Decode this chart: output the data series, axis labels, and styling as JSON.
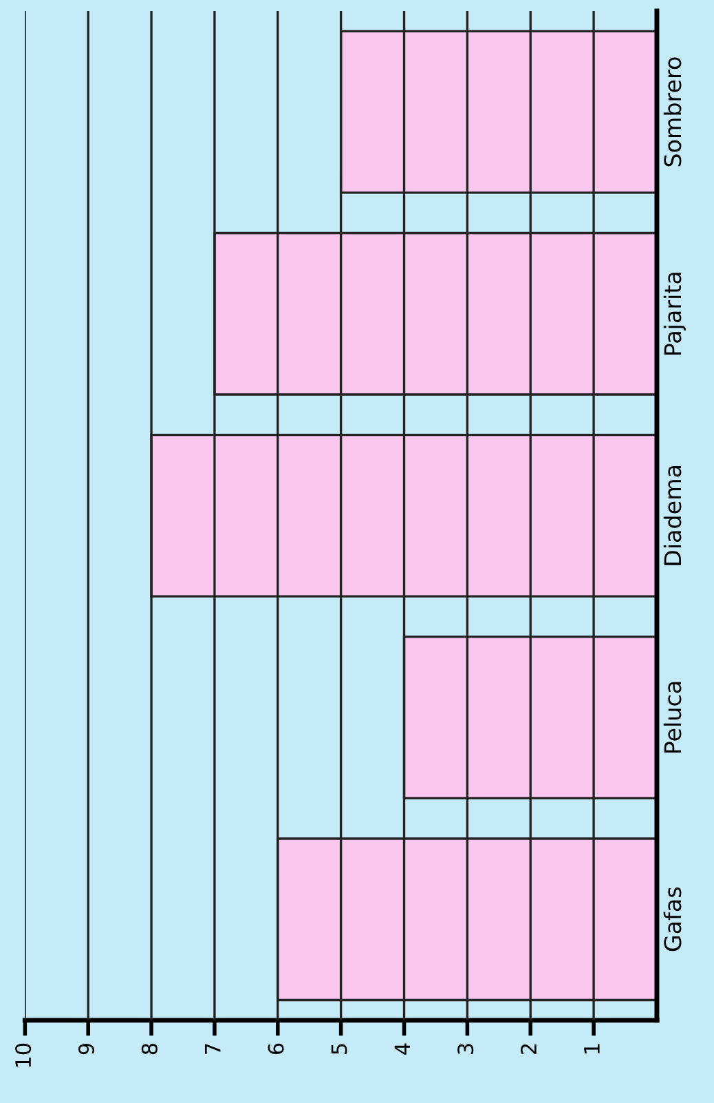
{
  "chart_data": {
    "type": "bar",
    "orientation": "horizontal",
    "categories": [
      "Sombrero",
      "Pajarita",
      "Diadema",
      "Peluca",
      "Gafas"
    ],
    "values": [
      5,
      7,
      8,
      4,
      6
    ],
    "color": "#f9c6ee",
    "xlim": [
      10,
      0
    ],
    "xticks": [
      1,
      2,
      3,
      4,
      5,
      6,
      7,
      8,
      9,
      10
    ],
    "grid": "x"
  }
}
